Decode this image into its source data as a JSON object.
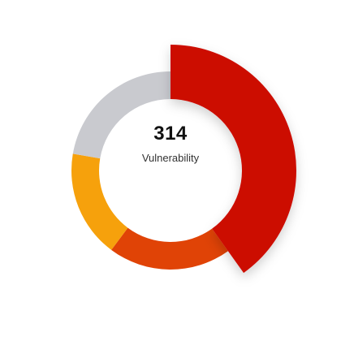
{
  "widget": {
    "total": "314",
    "caption": "Vulnerability"
  },
  "chart_data": {
    "type": "donut",
    "series": [
      {
        "value": 126,
        "color": "#cc0a00",
        "highlight": true
      },
      {
        "value": 63,
        "color": "#e04306"
      },
      {
        "value": 55,
        "color": "#f6a10c"
      },
      {
        "value": 70,
        "color": "#c9cacf"
      }
    ],
    "total": 314,
    "legend": "none"
  }
}
